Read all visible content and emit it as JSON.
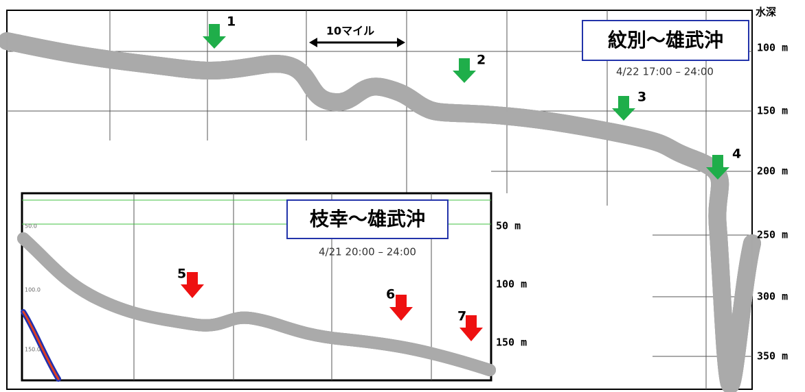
{
  "main": {
    "title": "紋別〜雄武沖",
    "date": "4/22 17:00 – 24:00",
    "depth_label": "水深",
    "depth_ticks": [
      "100 m",
      "150 m",
      "200 m",
      "250 m",
      "300 m",
      "350 m"
    ],
    "scale_label": "10マイル",
    "markers": [
      "1",
      "2",
      "3",
      "4"
    ]
  },
  "inset": {
    "title": "枝幸〜雄武沖",
    "date": "4/21 20:00 – 24:00",
    "depth_ticks": [
      "50 m",
      "100 m",
      "150 m"
    ],
    "scale_marks": [
      "50.0",
      "100.0",
      "150.0"
    ],
    "markers": [
      "5",
      "6",
      "7"
    ]
  }
}
